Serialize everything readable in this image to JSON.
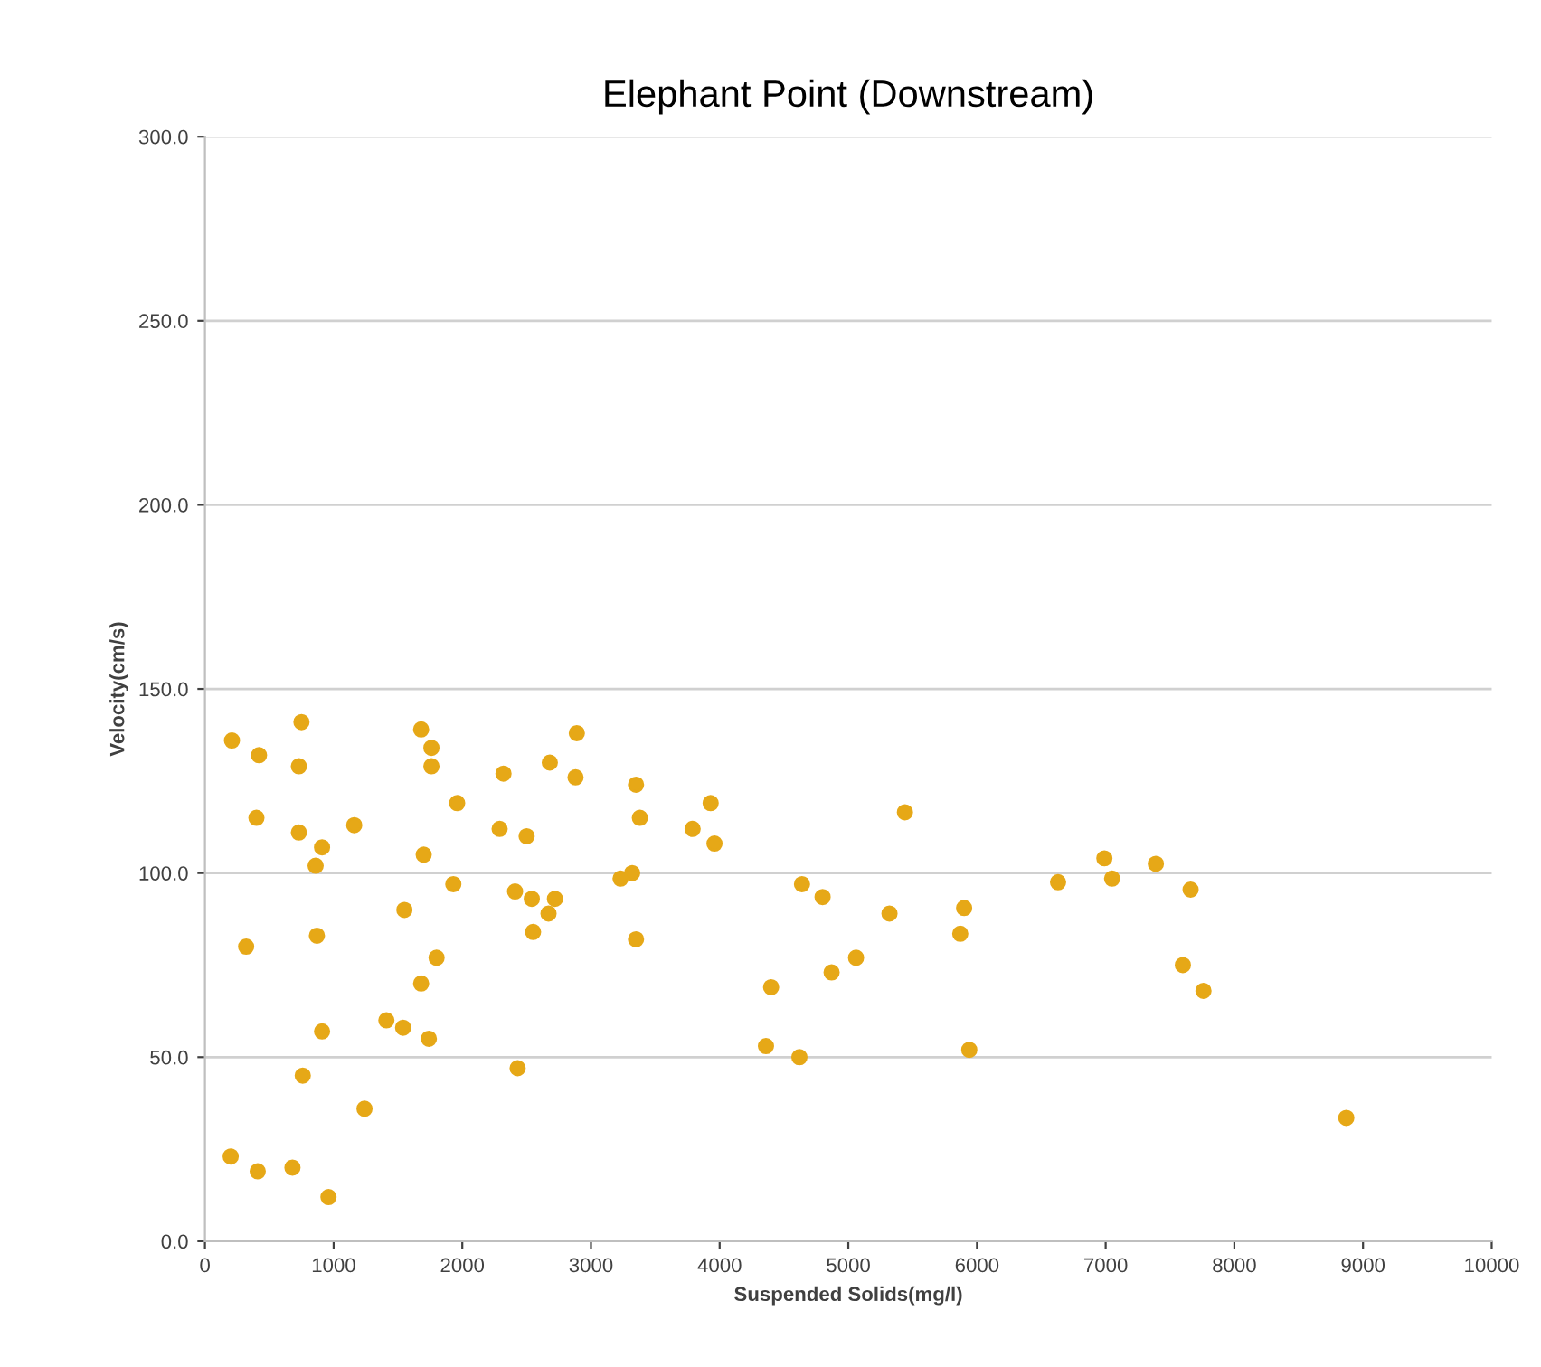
{
  "chart_data": {
    "type": "scatter",
    "title": "Elephant Point (Downstream)",
    "xlabel": "Suspended Solids(mg/l)",
    "ylabel": "Velocity(cm/s)",
    "xlim": [
      0,
      10000
    ],
    "xticks": [
      0,
      1000,
      2000,
      3000,
      4000,
      5000,
      6000,
      7000,
      8000,
      9000,
      10000
    ],
    "ylim": [
      0,
      300
    ],
    "yticks": [
      {
        "value": 0,
        "label": "0.0"
      },
      {
        "value": 50,
        "label": "50.0"
      },
      {
        "value": 100,
        "label": "100.0"
      },
      {
        "value": 150,
        "label": "150.0"
      },
      {
        "value": 200,
        "label": "200.0"
      },
      {
        "value": 250,
        "label": "250.0"
      },
      {
        "value": 300,
        "label": "300.0"
      }
    ],
    "grid": "y",
    "marker": "circle",
    "series": [
      {
        "color": "#e6a817",
        "x": [
          210,
          750,
          420,
          730,
          1680,
          1760,
          1760,
          2890,
          2680,
          2320,
          2880,
          3350,
          3380,
          1960,
          400,
          730,
          1160,
          2290,
          2500,
          910,
          860,
          1700,
          3230,
          3320,
          1930,
          2410,
          2540,
          2720,
          2670,
          2550,
          3350,
          1550,
          320,
          870,
          1800,
          1680,
          1410,
          1540,
          1740,
          910,
          760,
          2430,
          1240,
          200,
          410,
          680,
          960,
          3930,
          3790,
          3960,
          5440,
          4640,
          4800,
          5320,
          5900,
          5870,
          5060,
          4870,
          4400,
          6630,
          4360,
          4620,
          5940,
          6990,
          7050,
          7390,
          7660,
          7600,
          7760,
          8870
        ],
        "values": [
          136,
          141,
          132,
          129,
          139,
          134,
          129,
          138,
          130,
          127,
          126,
          124,
          115,
          119,
          115,
          111,
          113,
          112,
          110,
          107,
          102,
          105,
          98.5,
          100,
          97,
          95,
          93,
          93,
          89,
          84,
          82,
          90,
          80,
          83,
          77,
          70,
          60,
          58,
          55,
          57,
          45,
          47,
          36,
          23,
          19,
          20,
          12,
          119,
          112,
          108,
          116.5,
          97,
          93.5,
          89,
          90.5,
          83.5,
          77,
          73,
          69,
          97.5,
          53,
          50,
          52,
          104,
          98.5,
          102.5,
          95.5,
          75,
          68,
          33.5
        ]
      }
    ]
  }
}
